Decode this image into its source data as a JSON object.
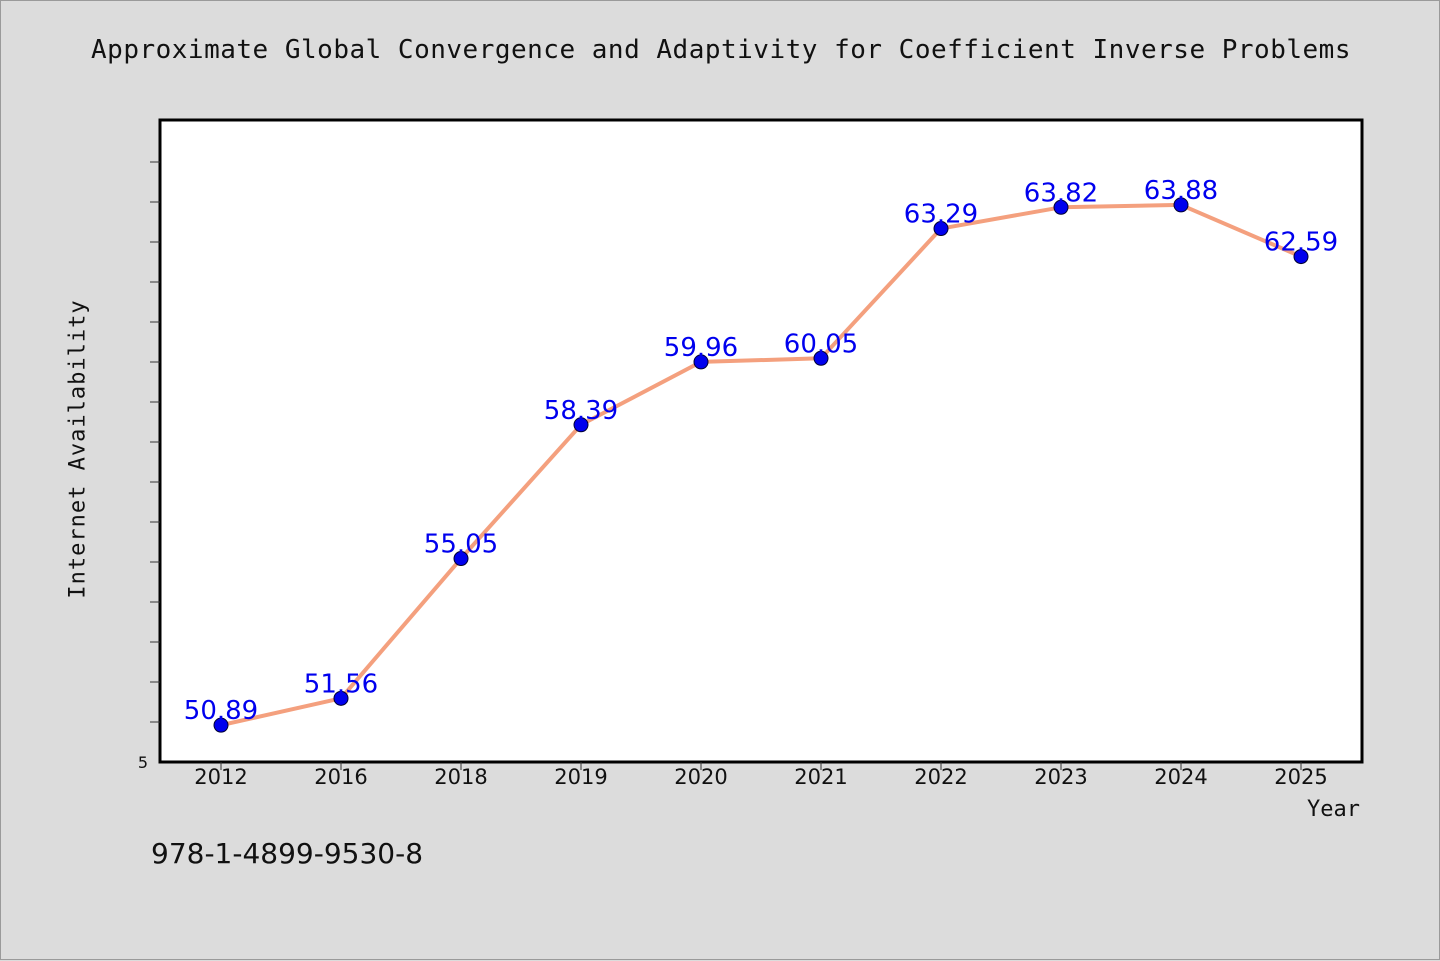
{
  "chart_data": {
    "type": "line",
    "title": "Approximate Global Convergence and Adaptivity for Coefficient Inverse Problems",
    "xlabel": "Year",
    "ylabel": "Internet Availability",
    "categories": [
      "2012",
      "2016",
      "2018",
      "2019",
      "2020",
      "2021",
      "2022",
      "2023",
      "2024",
      "2025"
    ],
    "series": [
      {
        "values": [
          50.89,
          51.56,
          55.05,
          58.39,
          59.96,
          60.05,
          63.29,
          63.82,
          63.88,
          62.59
        ],
        "data_labels": [
          "50.89",
          "51.56",
          "55.05",
          "58.39",
          "59.96",
          "60.05",
          "63.29",
          "63.82",
          "63.88",
          "62.59"
        ]
      }
    ],
    "ylim": [
      49.97,
      66.0
    ],
    "y_tick_label": "5",
    "line_color": "#f4a07e",
    "marker_color": "#0000ee",
    "label_color": "#0000ee",
    "plot_background": "#ffffff",
    "page_background": "#dcdcdc",
    "grid": false,
    "legend": "none"
  },
  "footnote": "978-1-4899-9530-8"
}
